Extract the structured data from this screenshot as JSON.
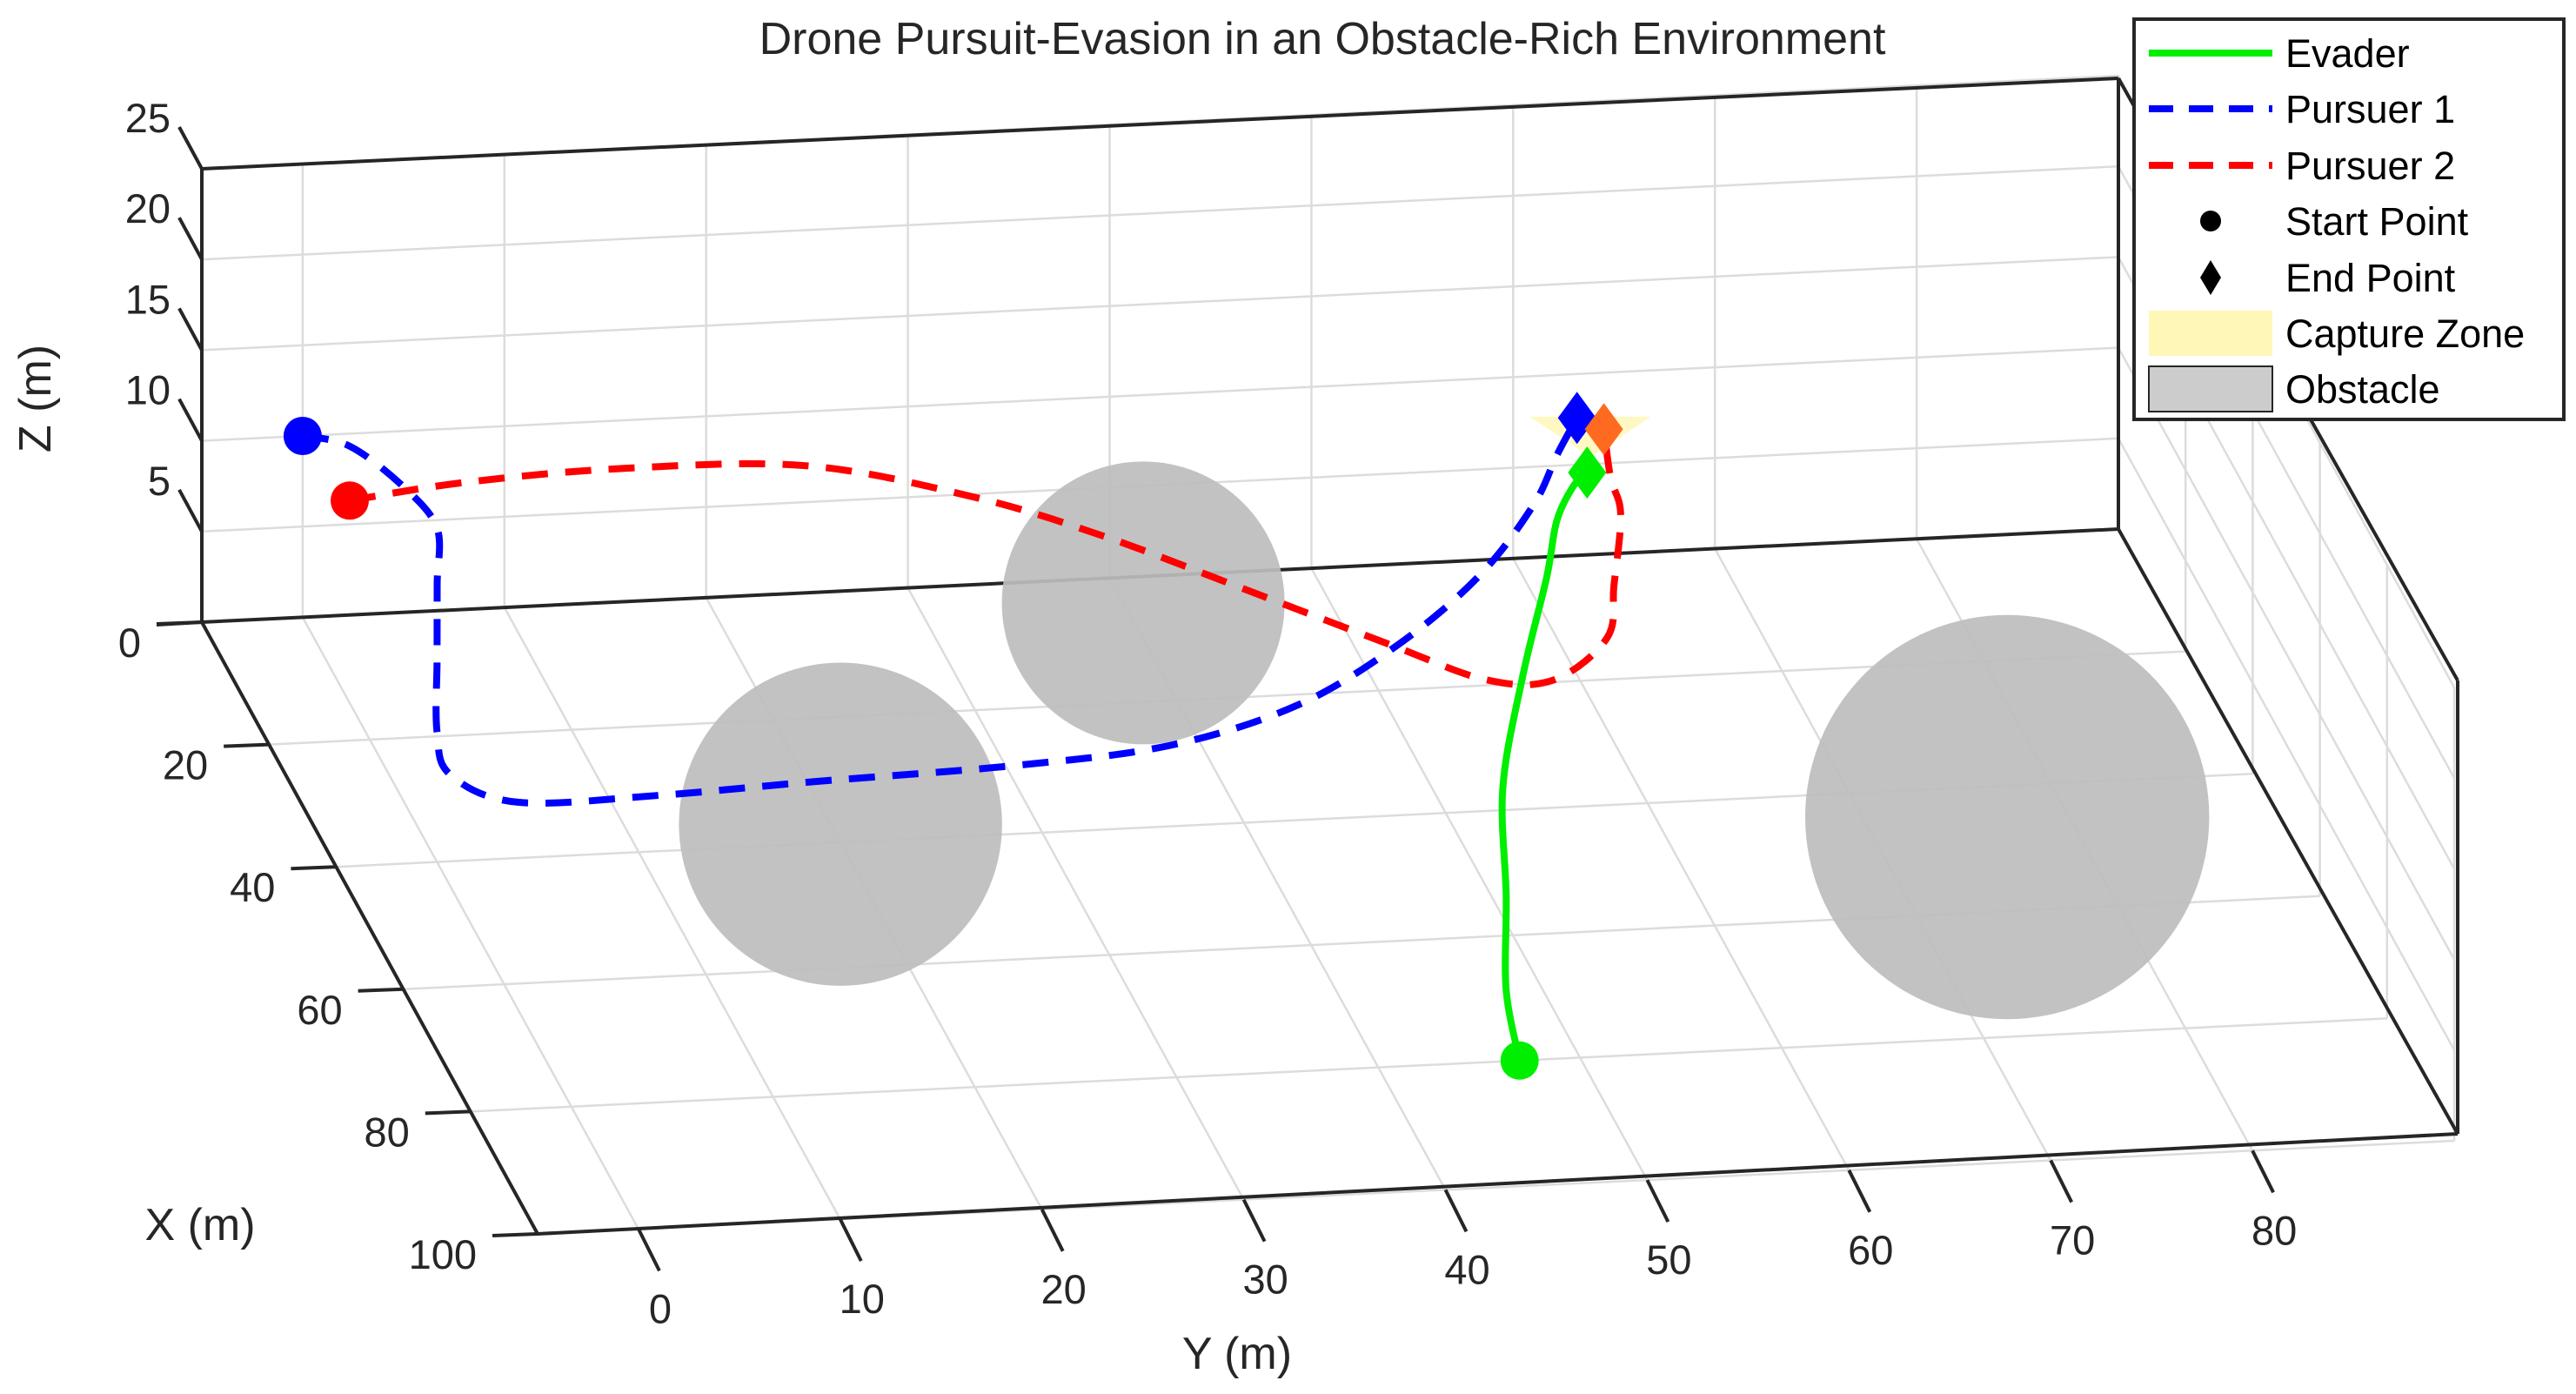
{
  "chart_data": {
    "type": "line3d",
    "title": "Drone Pursuit-Evasion in an Obstacle-Rich Environment",
    "xlabel": "X (m)",
    "ylabel": "Y (m)",
    "zlabel": "Z (m)",
    "xlim": [
      0,
      100
    ],
    "ylim": [
      -5,
      90
    ],
    "zlim": [
      0,
      25
    ],
    "x_ticks": [
      "0",
      "20",
      "40",
      "60",
      "80",
      "100"
    ],
    "y_ticks": [
      "0",
      "10",
      "20",
      "30",
      "40",
      "50",
      "60",
      "70",
      "80"
    ],
    "z_ticks": [
      "5",
      "10",
      "15",
      "20",
      "25"
    ],
    "grid": true,
    "legend_position": "top-right",
    "legend": [
      "Evader",
      "Pursuer 1",
      "Pursuer 2",
      "Start Point",
      "End Point",
      "Capture Zone",
      "Obstacle"
    ],
    "colors": {
      "evader": "#00ee00",
      "pursuer1": "#0000ff",
      "pursuer2": "#ff0000",
      "capture_zone": "#fff7b8",
      "obstacle": "#bdbdbd",
      "orange_marker": "#ff6a21"
    },
    "series": [
      {
        "name": "Evader",
        "style": "solid",
        "points": [
          [
            80,
            47,
            0
          ],
          [
            70,
            48,
            0.5
          ],
          [
            58,
            50,
            1.5
          ],
          [
            45,
            52,
            3
          ],
          [
            33,
            55,
            5
          ],
          [
            22,
            58,
            6.5
          ],
          [
            16,
            59.5,
            7.5
          ],
          [
            12,
            61,
            8
          ],
          [
            10,
            62,
            8
          ]
        ]
      },
      {
        "name": "Pursuer 1",
        "style": "dashed",
        "points": [
          [
            0,
            0,
            10
          ],
          [
            2,
            2,
            10
          ],
          [
            6,
            4,
            9
          ],
          [
            10,
            5,
            8
          ],
          [
            16,
            4,
            7
          ],
          [
            22,
            3,
            5
          ],
          [
            28,
            2,
            3
          ],
          [
            32,
            2,
            2
          ],
          [
            34,
            5,
            1
          ],
          [
            34,
            12,
            1
          ],
          [
            33,
            20,
            1
          ],
          [
            32,
            30,
            1
          ],
          [
            30,
            38,
            1
          ],
          [
            26,
            45,
            1.5
          ],
          [
            20,
            51,
            2.5
          ],
          [
            14,
            56,
            4
          ],
          [
            9,
            59.5,
            6
          ],
          [
            7,
            61,
            8
          ],
          [
            7,
            62,
            10
          ]
        ]
      },
      {
        "name": "Pursuer 2",
        "style": "dashed",
        "points": [
          [
            2,
            2,
            7
          ],
          [
            0,
            8,
            7
          ],
          [
            -1,
            16,
            7
          ],
          [
            0,
            25,
            7
          ],
          [
            2,
            33,
            5.5
          ],
          [
            5,
            39,
            4
          ],
          [
            10,
            45,
            2.5
          ],
          [
            17,
            51,
            1.5
          ],
          [
            22,
            55,
            1
          ],
          [
            24,
            58,
            1.5
          ],
          [
            22,
            61,
            3
          ],
          [
            18,
            62,
            4.5
          ],
          [
            14,
            63,
            7
          ],
          [
            11,
            63,
            8
          ],
          [
            9,
            63,
            10
          ]
        ]
      }
    ],
    "start_points": [
      {
        "series": "Evader",
        "point": [
          80,
          47,
          0
        ]
      },
      {
        "series": "Pursuer 1",
        "point": [
          0,
          0,
          10
        ]
      },
      {
        "series": "Pursuer 2",
        "point": [
          2,
          2,
          7
        ]
      }
    ],
    "end_points": [
      {
        "series": "Evader",
        "point": [
          10,
          62,
          8
        ]
      },
      {
        "series": "Pursuer 1",
        "point": [
          7,
          62,
          10
        ]
      },
      {
        "series": "Pursuer 2",
        "point": [
          9,
          63,
          10
        ]
      }
    ],
    "capture_zone": {
      "center": [
        8,
        62.5,
        10
      ],
      "radius": 3
    },
    "obstacles": [
      {
        "center": [
          40,
          20,
          1
        ],
        "radius": 8
      },
      {
        "center": [
          10,
          40,
          2
        ],
        "radius": 7
      },
      {
        "center": [
          45,
          77,
          0
        ],
        "radius": 10
      }
    ]
  }
}
